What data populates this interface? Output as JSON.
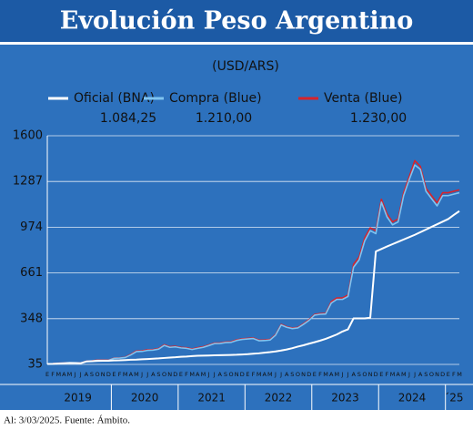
{
  "chart_data": {
    "type": "line",
    "title": "Evolución Peso Argentino",
    "subtitle": "(USD/ARS)",
    "footnote": "Al: 3/03/2025. Fuente: Ámbito.",
    "categories": [
      "E",
      "F",
      "M",
      "A",
      "M",
      "J",
      "J",
      "A",
      "S",
      "O",
      "N",
      "D",
      "E",
      "F",
      "M",
      "A",
      "M",
      "J",
      "J",
      "A",
      "S",
      "O",
      "N",
      "D",
      "E",
      "F",
      "M",
      "A",
      "M",
      "J",
      "J",
      "A",
      "S",
      "O",
      "N",
      "D",
      "E",
      "F",
      "M",
      "A",
      "M",
      "J",
      "J",
      "A",
      "S",
      "O",
      "N",
      "D",
      "E",
      "F",
      "M",
      "A",
      "M",
      "J",
      "J",
      "A",
      "S",
      "O",
      "N",
      "D",
      "E",
      "F",
      "M",
      "A",
      "M",
      "J",
      "J",
      "A",
      "S",
      "O",
      "N",
      "D",
      "E",
      "F",
      "M"
    ],
    "years": [
      "2019",
      "2020",
      "2021",
      "2022",
      "2023",
      "2024",
      "´25"
    ],
    "ylim": [
      35,
      1600
    ],
    "yticks": [
      35,
      348,
      661,
      974,
      1287,
      1600
    ],
    "grid": true,
    "series": [
      {
        "name": "Oficial (BNA)",
        "color": "#ffffff",
        "last_label": "1.084,25",
        "values": [
          38,
          39,
          41,
          43,
          45,
          44,
          43,
          55,
          57,
          59,
          60,
          60,
          62,
          63,
          65,
          67,
          68,
          70,
          72,
          74,
          76,
          79,
          82,
          84,
          87,
          89,
          92,
          94,
          95,
          96,
          97,
          98,
          99,
          100,
          101,
          103,
          105,
          108,
          111,
          115,
          119,
          124,
          130,
          137,
          146,
          157,
          166,
          177,
          187,
          198,
          210,
          225,
          240,
          260,
          275,
          350,
          350,
          350,
          355,
          808,
          825,
          842,
          858,
          874,
          890,
          906,
          922,
          940,
          958,
          976,
          994,
          1012,
          1030,
          1058,
          1084
        ]
      },
      {
        "name": "Compra (Blue)",
        "color": "#7fc4f0",
        "last_label": "1.210,00",
        "values": [
          37,
          38,
          41,
          42,
          44,
          42,
          42,
          55,
          57,
          63,
          63,
          63,
          77,
          78,
          82,
          100,
          123,
          124,
          131,
          133,
          140,
          165,
          152,
          155,
          148,
          145,
          137,
          145,
          152,
          164,
          177,
          178,
          184,
          186,
          199,
          206,
          209,
          212,
          197,
          198,
          202,
          235,
          305,
          289,
          280,
          285,
          309,
          336,
          372,
          378,
          380,
          455,
          480,
          480,
          500,
          700,
          750,
          880,
          950,
          930,
          1145,
          1045,
          990,
          1010,
          1190,
          1300,
          1400,
          1370,
          1220,
          1170,
          1120,
          1190,
          1190,
          1200,
          1210
        ]
      },
      {
        "name": "Venta (Blue)",
        "color": "#d8232a",
        "last_label": "1.230,00",
        "values": [
          39,
          40,
          43,
          44,
          46,
          44,
          44,
          57,
          59,
          65,
          65,
          65,
          79,
          80,
          84,
          104,
          127,
          128,
          135,
          137,
          144,
          170,
          156,
          159,
          152,
          149,
          141,
          149,
          156,
          168,
          181,
          182,
          188,
          190,
          203,
          210,
          213,
          216,
          201,
          202,
          206,
          239,
          309,
          293,
          284,
          289,
          314,
          341,
          377,
          383,
          385,
          465,
          490,
          490,
          510,
          720,
          770,
          900,
          970,
          950,
          1165,
          1065,
          1010,
          1030,
          1210,
          1320,
          1430,
          1390,
          1240,
          1190,
          1140,
          1210,
          1210,
          1220,
          1230
        ]
      }
    ]
  }
}
